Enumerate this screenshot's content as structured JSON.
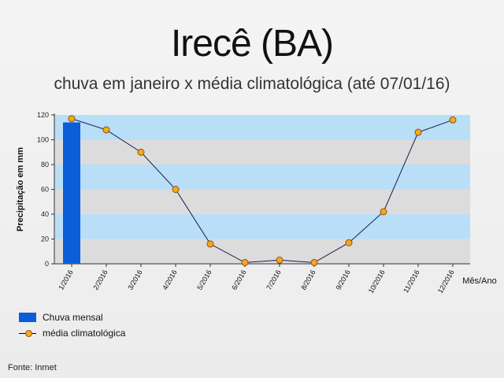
{
  "title": "Irecê (BA)",
  "subtitle": "chuva em janeiro x média climatológica (até 07/01/16)",
  "source": "Fonte: Inmet",
  "colors": {
    "bar": "#0b5ed7",
    "line": "#1a1a4a",
    "marker": "#f5a623",
    "band_light": "#b9def7",
    "band_gray": "#dcdcdc"
  },
  "chart_data": {
    "type": "bar",
    "categories": [
      "1/2016",
      "2/2016",
      "3/2016",
      "4/2016",
      "5/2016",
      "6/2016",
      "7/2016",
      "8/2016",
      "9/2016",
      "10/2016",
      "11/2016",
      "12/2016"
    ],
    "series": [
      {
        "name": "Chuva mensal",
        "type": "bar",
        "values": [
          114,
          null,
          null,
          null,
          null,
          null,
          null,
          null,
          null,
          null,
          null,
          null
        ]
      },
      {
        "name": "média climatológica",
        "type": "line",
        "values": [
          117,
          108,
          90,
          60,
          16,
          1,
          3,
          1,
          17,
          42,
          106,
          116
        ]
      }
    ],
    "ylabel": "Precipitação em mm",
    "xlabel": "Mês/Ano",
    "ylim": [
      0,
      120
    ],
    "yticks": [
      0,
      20,
      40,
      60,
      80,
      100,
      120
    ],
    "grid": "horizontal bands",
    "legend_position": "bottom-left"
  }
}
